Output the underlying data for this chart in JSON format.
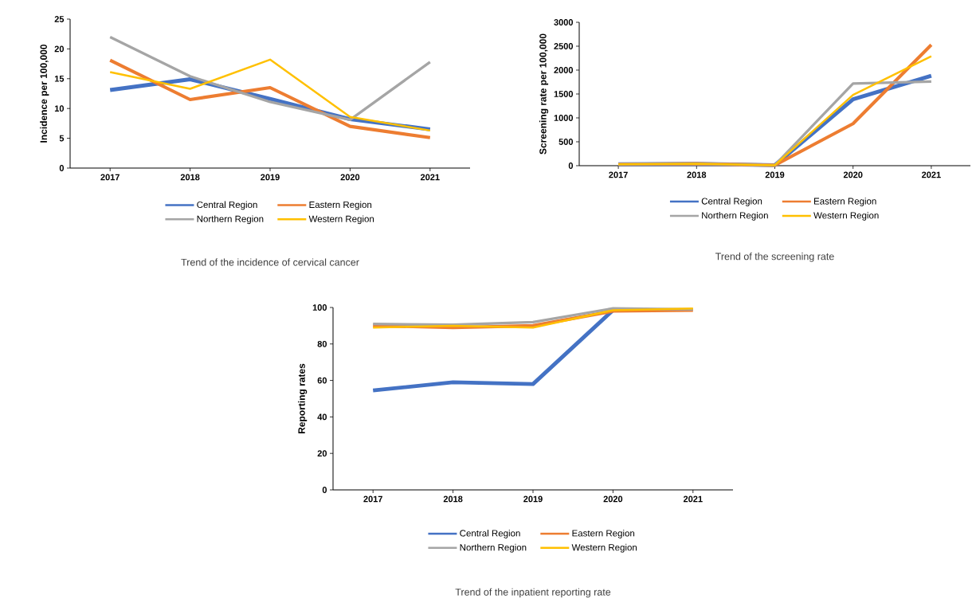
{
  "chart_data": [
    {
      "type": "line",
      "title": "Trend of the incidence of cervical cancer",
      "ylabel": "Incidence per  100,000",
      "categories": [
        "2017",
        "2018",
        "2019",
        "2020",
        "2021"
      ],
      "ylim": [
        0,
        25
      ],
      "yticks": [
        0,
        5,
        10,
        15,
        20,
        25
      ],
      "legend": "bottom",
      "grid": false,
      "series": [
        {
          "name": "Central Region",
          "color": "#4472c4",
          "values": [
            13.1,
            14.9,
            11.6,
            8.2,
            6.5
          ]
        },
        {
          "name": "Eastern Region",
          "color": "#ed7d31",
          "values": [
            18.1,
            11.5,
            13.5,
            7.0,
            5.1
          ]
        },
        {
          "name": "Northern Region",
          "color": "#a5a5a5",
          "values": [
            22.0,
            15.4,
            11.1,
            8.1,
            17.8
          ]
        },
        {
          "name": "Western Region",
          "color": "#ffc000",
          "values": [
            16.1,
            13.3,
            18.2,
            8.6,
            6.3
          ]
        }
      ]
    },
    {
      "type": "line",
      "title": "Trend of the screening rate",
      "ylabel": "Screening rate per 100,000",
      "categories": [
        "2017",
        "2018",
        "2019",
        "2020",
        "2021"
      ],
      "ylim": [
        0,
        3000
      ],
      "yticks": [
        0,
        500,
        1000,
        1500,
        2000,
        2500,
        3000
      ],
      "legend": "bottom",
      "grid": false,
      "series": [
        {
          "name": "Central Region",
          "color": "#4472c4",
          "values": [
            30,
            40,
            10,
            1390,
            1880
          ]
        },
        {
          "name": "Eastern Region",
          "color": "#ed7d31",
          "values": [
            30,
            40,
            10,
            880,
            2530
          ]
        },
        {
          "name": "Northern Region",
          "color": "#a5a5a5",
          "values": [
            30,
            40,
            10,
            1720,
            1760
          ]
        },
        {
          "name": "Western Region",
          "color": "#ffc000",
          "values": [
            30,
            40,
            10,
            1480,
            2290
          ]
        }
      ]
    },
    {
      "type": "line",
      "title": "Trend of the inpatient reporting rate",
      "ylabel": "Reporting rates",
      "categories": [
        "2017",
        "2018",
        "2019",
        "2020",
        "2021"
      ],
      "ylim": [
        0,
        100
      ],
      "yticks": [
        0,
        20,
        40,
        60,
        80,
        100
      ],
      "legend": "bottom",
      "grid": false,
      "series": [
        {
          "name": "Central Region",
          "color": "#4472c4",
          "values": [
            54.5,
            59,
            58,
            98.5,
            null
          ]
        },
        {
          "name": "Eastern Region",
          "color": "#ed7d31",
          "values": [
            90,
            89,
            90,
            98,
            98.5
          ]
        },
        {
          "name": "Northern Region",
          "color": "#a5a5a5",
          "values": [
            91,
            90.5,
            92,
            99.5,
            99
          ]
        },
        {
          "name": "Western Region",
          "color": "#ffc000",
          "values": [
            89,
            90,
            89,
            98.5,
            99.5
          ]
        }
      ]
    }
  ]
}
